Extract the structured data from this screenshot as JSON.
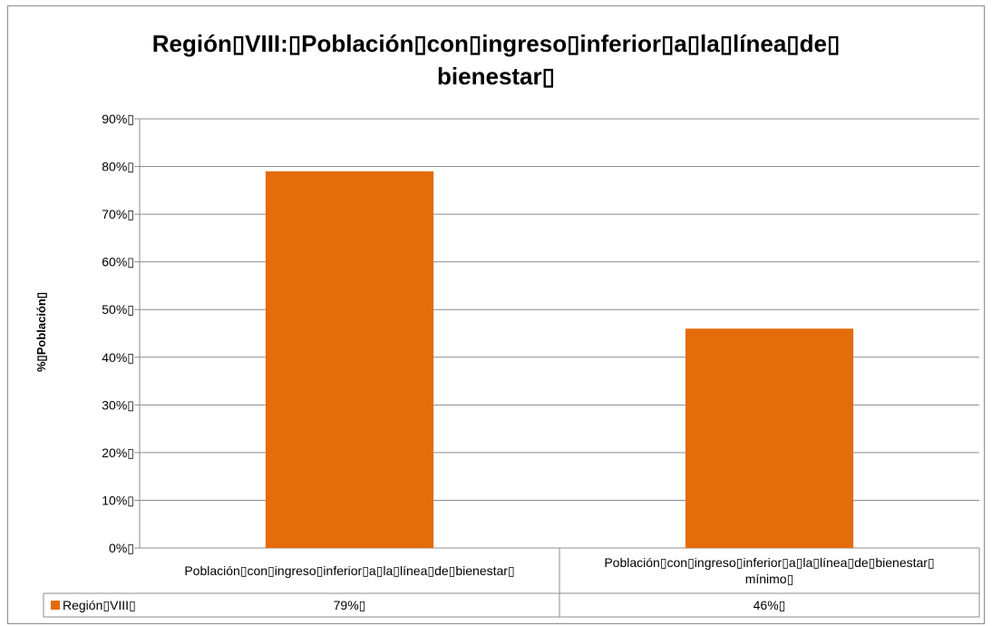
{
  "chart_data": {
    "type": "bar",
    "title": "Región▯VIII:▯Población▯con▯ingreso▯inferior▯a▯la▯línea▯de▯\nbienestar▯",
    "ylabel": "%▯Población▯",
    "xlabel": "",
    "ylim": [
      0,
      90
    ],
    "y_ticks": [
      "0%▯",
      "10%▯",
      "20%▯",
      "30%▯",
      "40%▯",
      "50%▯",
      "60%▯",
      "70%▯",
      "80%▯",
      "90%▯"
    ],
    "grid": true,
    "categories": [
      [
        "Población▯con▯ingreso▯inferior▯a▯la▯línea▯de▯bienestar▯"
      ],
      [
        "Población▯con▯ingreso▯inferior▯a▯la▯línea▯de▯bienestar▯",
        "mínimo▯"
      ]
    ],
    "series": [
      {
        "name": "Región▯VIII▯",
        "values": [
          79,
          46
        ],
        "value_labels": [
          "79%▯",
          "46%▯"
        ],
        "color": "#e46c0a"
      }
    ],
    "data_table": true
  }
}
